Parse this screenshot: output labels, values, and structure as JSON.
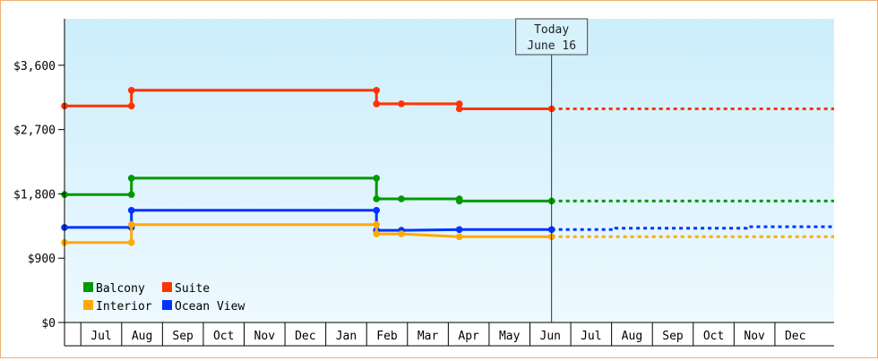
{
  "chart_data": {
    "type": "line",
    "step": true,
    "y_ticks": [
      {
        "value": 0,
        "label": "$0"
      },
      {
        "value": 900,
        "label": "$900"
      },
      {
        "value": 1800,
        "label": "$1,800"
      },
      {
        "value": 2700,
        "label": "$2,700"
      },
      {
        "value": 3600,
        "label": "$3,600"
      }
    ],
    "ylim": [
      0,
      4250
    ],
    "xlim": [
      0,
      18.85
    ],
    "x_month_labels": [
      "Jul",
      "Aug",
      "Sep",
      "Oct",
      "Nov",
      "Dec",
      "Jan",
      "Feb",
      "Mar",
      "Apr",
      "May",
      "Jun",
      "Jul",
      "Aug",
      "Sep",
      "Oct",
      "Nov",
      "Dec"
    ],
    "today": {
      "line1": "Today",
      "line2": "June 16",
      "x": 11.93
    },
    "series": [
      {
        "name": "Suite",
        "color": "#ff3300",
        "points": [
          [
            0,
            3030
          ],
          [
            1.64,
            3030
          ],
          [
            1.64,
            3250
          ],
          [
            7.64,
            3250
          ],
          [
            7.64,
            3060
          ],
          [
            8.25,
            3060
          ],
          [
            9.67,
            3060
          ],
          [
            9.67,
            2990
          ],
          [
            11.93,
            2990
          ]
        ],
        "projection": [
          [
            11.93,
            2990
          ],
          [
            18.85,
            2990
          ]
        ]
      },
      {
        "name": "Balcony",
        "color": "#009900",
        "points": [
          [
            0,
            1790
          ],
          [
            1.64,
            1790
          ],
          [
            1.64,
            2020
          ],
          [
            7.64,
            2020
          ],
          [
            7.64,
            1730
          ],
          [
            8.25,
            1730
          ],
          [
            9.67,
            1730
          ],
          [
            9.67,
            1700
          ],
          [
            11.93,
            1700
          ]
        ],
        "projection": [
          [
            11.93,
            1700
          ],
          [
            18.85,
            1700
          ]
        ]
      },
      {
        "name": "Ocean View",
        "color": "#0033ff",
        "points": [
          [
            0,
            1330
          ],
          [
            1.64,
            1330
          ],
          [
            1.64,
            1570
          ],
          [
            7.64,
            1570
          ],
          [
            7.64,
            1290
          ],
          [
            8.25,
            1290
          ],
          [
            9.67,
            1300
          ],
          [
            11.93,
            1300
          ]
        ],
        "projection": [
          [
            11.93,
            1300
          ],
          [
            13.5,
            1300
          ],
          [
            13.5,
            1320
          ],
          [
            16.7,
            1320
          ],
          [
            16.7,
            1340
          ],
          [
            18.85,
            1340
          ]
        ]
      },
      {
        "name": "Interior",
        "color": "#ffaa00",
        "points": [
          [
            0,
            1120
          ],
          [
            1.64,
            1120
          ],
          [
            1.64,
            1370
          ],
          [
            7.64,
            1370
          ],
          [
            7.64,
            1240
          ],
          [
            8.25,
            1240
          ],
          [
            9.67,
            1200
          ],
          [
            11.93,
            1200
          ]
        ],
        "projection": [
          [
            11.93,
            1200
          ],
          [
            18.85,
            1200
          ]
        ]
      }
    ],
    "legend": {
      "placement": "bottom-left",
      "rows": [
        [
          "Balcony",
          "Suite"
        ],
        [
          "Interior",
          "Ocean View"
        ]
      ]
    },
    "colors": {
      "background_top": "#cceefb",
      "background_bottom": "#eef9ff",
      "axis": "#000000"
    }
  }
}
